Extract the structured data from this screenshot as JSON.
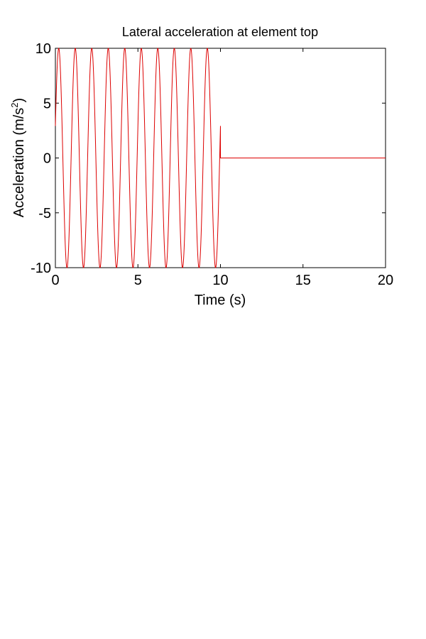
{
  "chart_data": {
    "type": "line",
    "title": "Lateral acceleration at element top",
    "xlabel": "Time (s)",
    "ylabel_prefix": "Acceleration (m/s",
    "ylabel_sup": "2",
    "ylabel_suffix": ")",
    "xlim": [
      0,
      20
    ],
    "ylim": [
      -10,
      10
    ],
    "xticks": [
      0,
      5,
      10,
      15,
      20
    ],
    "yticks": [
      -10,
      -5,
      0,
      5,
      10
    ],
    "xtick_labels": [
      "0",
      "5",
      "10",
      "15",
      "20"
    ],
    "ytick_labels": [
      "-10",
      "-5",
      "0",
      "5",
      "10"
    ],
    "grid": false,
    "series": [
      {
        "color": "#dd0000",
        "signal": {
          "form": "sine",
          "amplitude": 10,
          "frequency_hz": 1,
          "phase_deg": 17,
          "start_s": 0,
          "end_s": 10,
          "value_after_end": 0,
          "end_time_s": 20,
          "sample_step_s": 0.01
        }
      }
    ]
  }
}
